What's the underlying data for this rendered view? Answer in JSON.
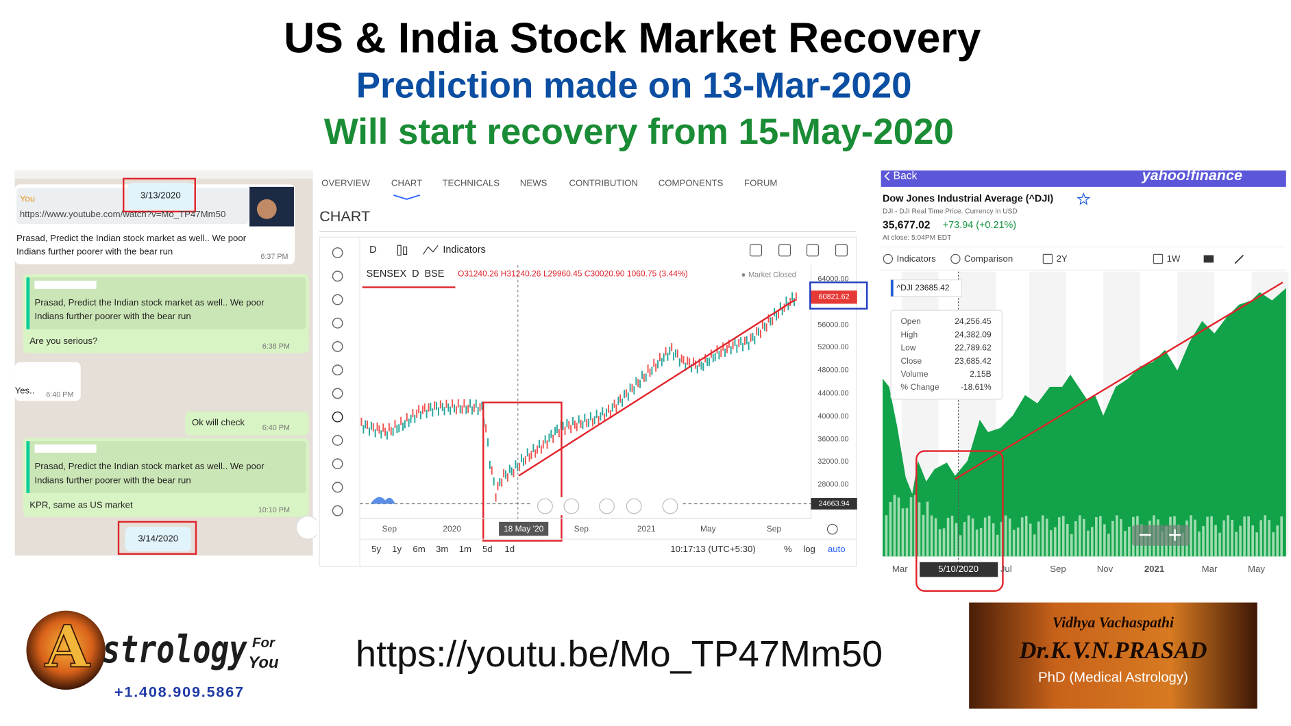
{
  "header": {
    "title": "US & India Stock Market Recovery",
    "prediction": "Prediction made on 13-Mar-2020",
    "recovery": "Will start recovery from 15-May-2020"
  },
  "chat": {
    "date_start": "3/13/2020",
    "sender": "You",
    "link": "https://www.youtube.com/watch?v=Mo_TP47Mm50",
    "messages": [
      {
        "lines": [
          "Prasad, Predict the Indian stock market as well.. We poor",
          "Indians further poorer with the bear run"
        ],
        "time": "6:37 PM"
      },
      {
        "quote": [
          "Prasad, Predict the Indian stock market as well.. We poor",
          "Indians further poorer with the bear run"
        ],
        "lines": [
          "Are you serious?"
        ],
        "time": "6:38 PM"
      },
      {
        "lines": [
          "Yes.."
        ],
        "time": "6:40 PM"
      },
      {
        "lines": [
          "Ok will check"
        ],
        "time": "6:40 PM"
      },
      {
        "quote": [
          "Prasad, Predict the Indian stock market as well.. We poor",
          "Indians further poorer with the bear run"
        ],
        "lines": [
          "KPR, same as US market"
        ],
        "time": "10:10 PM"
      }
    ],
    "date_end": "3/14/2020"
  },
  "sensex": {
    "tabs": [
      "OVERVIEW",
      "CHART",
      "TECHNICALS",
      "NEWS",
      "CONTRIBUTION",
      "COMPONENTS",
      "FORUM"
    ],
    "heading": "CHART",
    "interval": "D",
    "indicators": "Indicators",
    "symbol": "SENSEX  D  BSE",
    "ohlc": "O31240.26 H31240.26 L29960.45 C30020.90 1060.75 (3.44%)",
    "status": "Market Closed",
    "y_labels": [
      "64000.00",
      "56000.00",
      "52000.00",
      "48000.00",
      "44000.00",
      "40000.00",
      "36000.00",
      "32000.00",
      "28000.00"
    ],
    "last_price": "60821.62",
    "low_line": "24663.94",
    "x_labels": [
      "Sep",
      "2020",
      "18 May '20",
      "Sep",
      "2021",
      "May",
      "Sep"
    ],
    "ranges": [
      "5y",
      "1y",
      "6m",
      "3m",
      "1m",
      "5d",
      "1d"
    ],
    "clock": "10:17:13 (UTC+5:30)",
    "scale_options": [
      "%",
      "log",
      "auto"
    ]
  },
  "dow": {
    "back": "Back",
    "brand": "yahoo!finance",
    "name": "Dow Jones Industrial Average (^DJI)",
    "source": "DJI - DJI Real Time Price. Currency in USD",
    "price": "35,677.02",
    "change": "+73.94 (+0.21%)",
    "close_time": "At close: 5:04PM EDT",
    "tools": [
      "Indicators",
      "Comparison",
      "2Y",
      "1W"
    ],
    "legend": "^DJI 23685.42",
    "tooltip": [
      [
        "Open",
        "24,256.45"
      ],
      [
        "High",
        "24,382.09"
      ],
      [
        "Low",
        "22,789.62"
      ],
      [
        "Close",
        "23,685.42"
      ],
      [
        "Volume",
        "2.15B"
      ],
      [
        "% Change",
        "-18.61%"
      ]
    ],
    "x_labels": [
      "Mar",
      "5/10/2020",
      "Jul",
      "Sep",
      "Nov",
      "2021",
      "Mar",
      "May"
    ]
  },
  "footer": {
    "logo": {
      "initial": "A",
      "word": "strology",
      "tag": [
        "For",
        "You"
      ],
      "phone": "+1.408.909.5867"
    },
    "url": "https://youtu.be/Mo_TP47Mm50",
    "badge": {
      "honorific": "Vidhya Vachaspathi",
      "name": "Dr.K.V.N.PRASAD",
      "degree": "PhD (Medical Astrology)"
    }
  }
}
